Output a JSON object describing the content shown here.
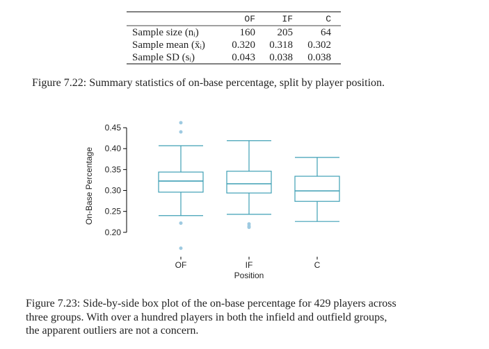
{
  "table": {
    "columns": [
      "OF",
      "IF",
      "C"
    ],
    "rows": [
      [
        "Sample size (nᵢ)",
        "160",
        "205",
        "64"
      ],
      [
        "Sample mean (x̄ᵢ)",
        "0.320",
        "0.318",
        "0.302"
      ],
      [
        "Sample SD (sᵢ)",
        "0.043",
        "0.038",
        "0.038"
      ]
    ]
  },
  "table_caption": "Figure 7.22: Summary statistics of on-base percentage, split by player position.",
  "chart_data": {
    "type": "box",
    "ylabel": "On-Base Percentage",
    "xlabel": "Position",
    "categories": [
      "OF",
      "IF",
      "C"
    ],
    "color": "#3e9fb5",
    "outlier_color": "#9ecae1",
    "ylim": [
      0.15,
      0.47
    ],
    "yticks": [
      {
        "value": 0.2,
        "label": "0.20"
      },
      0.25,
      {
        "value": 0.3,
        "label": "0.30"
      },
      0.35,
      {
        "value": 0.4,
        "label": "0.40"
      },
      0.45
    ],
    "boxes": [
      {
        "whisker_low": 0.24,
        "q1": 0.296,
        "median": 0.3225,
        "q3": 0.344,
        "whisker_high": 0.407,
        "outliers": [
          0.462,
          0.44,
          0.222,
          0.162
        ]
      },
      {
        "whisker_low": 0.243,
        "q1": 0.294,
        "median": 0.316,
        "q3": 0.346,
        "whisker_high": 0.419,
        "outliers": [
          0.22,
          0.215,
          0.212
        ]
      },
      {
        "whisker_low": 0.226,
        "q1": 0.274,
        "median": 0.299,
        "q3": 0.334,
        "whisker_high": 0.379,
        "outliers": []
      }
    ]
  },
  "chart_caption": [
    "Figure 7.23: Side-by-side box plot of the on-base percentage for 429 players across",
    "three groups. With over a hundred players in both the infield and outfield groups,",
    "the apparent outliers are not a concern."
  ]
}
